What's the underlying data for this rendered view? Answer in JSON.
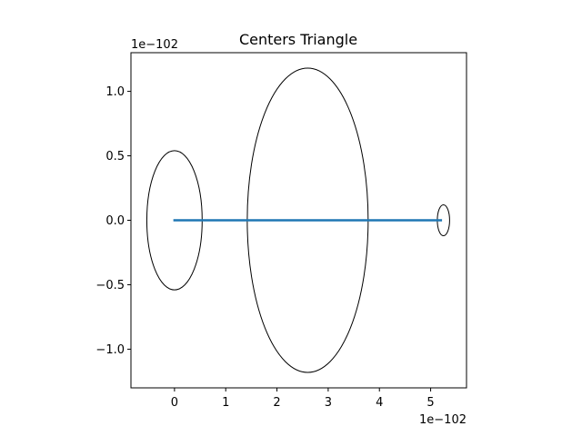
{
  "chart_data": {
    "type": "line",
    "title": "Centers Triangle",
    "xlabel": "",
    "ylabel": "",
    "x_offset_label": "1e−102",
    "y_offset_label": "1e−102",
    "xlim": [
      -0.85,
      5.7
    ],
    "ylim": [
      -1.3,
      1.3
    ],
    "x_ticks": [
      0,
      1,
      2,
      3,
      4,
      5
    ],
    "x_tick_labels": [
      "0",
      "1",
      "2",
      "3",
      "4",
      "5"
    ],
    "y_ticks": [
      -1.0,
      -0.5,
      0.0,
      0.5,
      1.0
    ],
    "y_tick_labels": [
      "−1.0",
      "−0.5",
      "0.0",
      "0.5",
      "1.0"
    ],
    "grid": false,
    "series": [
      {
        "color": "#1f77b4",
        "x": [
          0.0,
          5.2
        ],
        "y": [
          0.0,
          0.0
        ]
      }
    ],
    "ellipses": [
      {
        "cx": 0.0,
        "cy": 0.0,
        "rx": 0.54,
        "ry": 0.54,
        "color": "#000000"
      },
      {
        "cx": 2.6,
        "cy": 0.0,
        "rx": 1.18,
        "ry": 1.18,
        "color": "#000000"
      },
      {
        "cx": 5.25,
        "cy": 0.0,
        "rx": 0.12,
        "ry": 0.12,
        "color": "#000000"
      }
    ]
  }
}
